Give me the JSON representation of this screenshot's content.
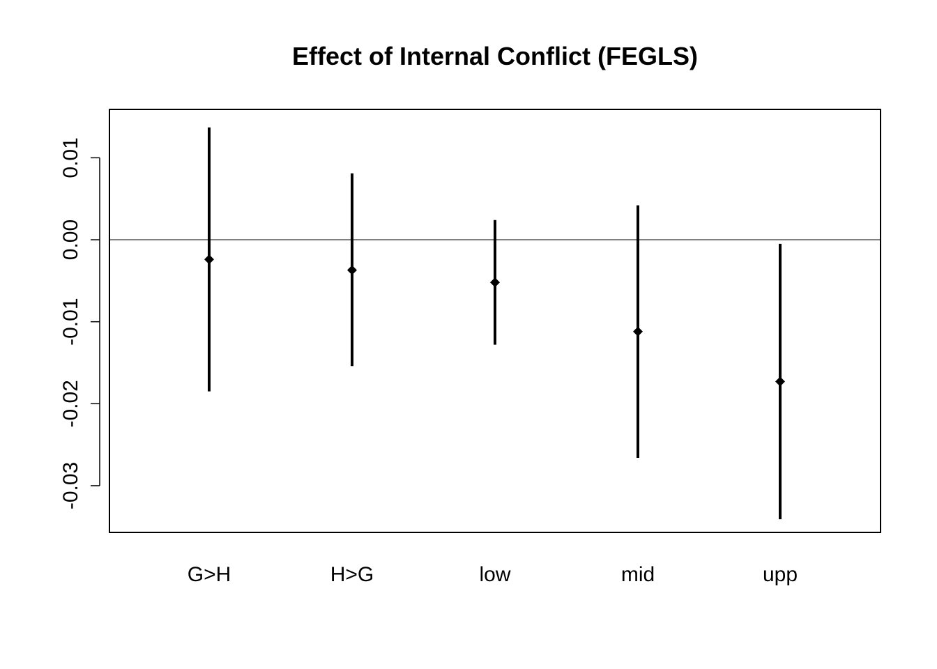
{
  "chart_data": {
    "type": "errorbar",
    "title": "Effect of Internal Conflict (FEGLS)",
    "xlabel": "",
    "ylabel": "",
    "categories": [
      "G>H",
      "H>G",
      "low",
      "mid",
      "upp"
    ],
    "estimates": [
      -0.0024,
      -0.0037,
      -0.0052,
      -0.0112,
      -0.0173
    ],
    "lower": [
      -0.0185,
      -0.0154,
      -0.0128,
      -0.0266,
      -0.0341
    ],
    "upper": [
      0.0137,
      0.0081,
      0.0024,
      0.0042,
      -0.0005
    ],
    "ylim": [
      -0.0357,
      0.0159
    ],
    "yticks": [
      0.01,
      0.0,
      -0.01,
      -0.02,
      -0.03
    ],
    "ytick_labels": [
      "0.01",
      "0.00",
      "-0.01",
      "-0.02",
      "-0.03"
    ],
    "reference_line": 0.0,
    "grid": false,
    "legend": "none",
    "colors": {
      "marks": "#000000",
      "axis": "#000000"
    }
  }
}
